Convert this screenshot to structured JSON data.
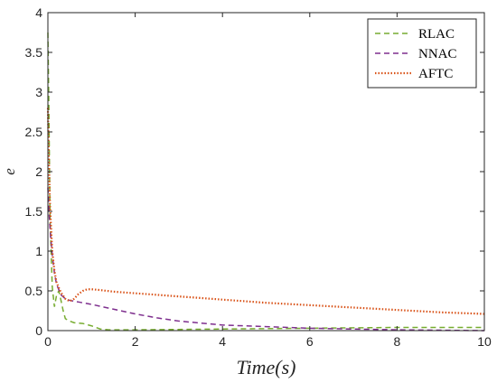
{
  "chart_data": {
    "type": "line",
    "xlabel": "Time(s)",
    "ylabel": "e",
    "xlim": [
      0,
      10
    ],
    "ylim": [
      0,
      4
    ],
    "xticks": [
      0,
      2,
      4,
      6,
      8,
      10
    ],
    "yticks": [
      0,
      0.5,
      1,
      1.5,
      2,
      2.5,
      3,
      3.5,
      4
    ],
    "grid": false,
    "legend_position": "top-right",
    "series": [
      {
        "name": "RLAC",
        "color": "#77ac30",
        "dash": "dashed",
        "x": [
          0,
          0.02,
          0.05,
          0.1,
          0.15,
          0.2,
          0.25,
          0.3,
          0.35,
          0.4,
          0.5,
          0.6,
          0.8,
          1.0,
          1.2,
          1.4,
          2,
          4,
          6,
          8,
          10
        ],
        "y": [
          3.75,
          2.9,
          1.4,
          0.55,
          0.3,
          0.45,
          0.5,
          0.38,
          0.25,
          0.15,
          0.12,
          0.1,
          0.09,
          0.06,
          0.02,
          0.01,
          0.01,
          0.02,
          0.03,
          0.04,
          0.04
        ]
      },
      {
        "name": "NNAC",
        "color": "#7e2f8e",
        "dash": "dashed",
        "x": [
          0,
          0.03,
          0.06,
          0.1,
          0.15,
          0.2,
          0.3,
          0.4,
          0.5,
          0.7,
          1.0,
          1.5,
          2,
          2.5,
          3,
          4,
          5,
          6,
          7,
          8,
          9,
          10
        ],
        "y": [
          1.8,
          1.45,
          1.2,
          0.95,
          0.72,
          0.58,
          0.45,
          0.4,
          0.38,
          0.36,
          0.33,
          0.27,
          0.21,
          0.16,
          0.12,
          0.07,
          0.05,
          0.03,
          0.02,
          0.01,
          0.005,
          0.0
        ]
      },
      {
        "name": "AFTC",
        "color": "#d95319",
        "dash": "dotted",
        "x": [
          0,
          0.02,
          0.05,
          0.1,
          0.15,
          0.2,
          0.3,
          0.4,
          0.5,
          0.6,
          0.7,
          0.8,
          0.9,
          1.0,
          1.2,
          1.5,
          2,
          3,
          4,
          5,
          6,
          7,
          8,
          9,
          10
        ],
        "y": [
          2.8,
          2.2,
          1.55,
          1.0,
          0.75,
          0.6,
          0.48,
          0.4,
          0.37,
          0.4,
          0.46,
          0.5,
          0.52,
          0.52,
          0.51,
          0.49,
          0.47,
          0.43,
          0.39,
          0.35,
          0.32,
          0.29,
          0.26,
          0.23,
          0.21
        ]
      }
    ]
  }
}
